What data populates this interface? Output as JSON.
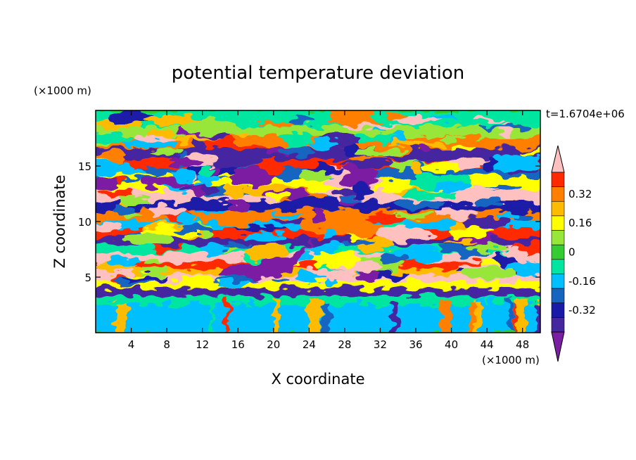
{
  "chart_data": {
    "type": "heatmap",
    "title": "potential temperature deviation",
    "xlabel": "X coordinate",
    "ylabel": "Z coordinate",
    "x_unit": "(×1000 m)",
    "y_unit": "(×1000 m)",
    "time_label": "t=1.6704e+06",
    "xlim": [
      0,
      50
    ],
    "ylim": [
      0,
      20
    ],
    "x_ticks": [
      "4",
      "8",
      "12",
      "16",
      "20",
      "24",
      "28",
      "32",
      "36",
      "40",
      "44",
      "48"
    ],
    "y_ticks": [
      "5",
      "10",
      "15"
    ],
    "colorbar": {
      "levels": [
        -0.4,
        -0.32,
        -0.24,
        -0.16,
        -0.08,
        0,
        0.08,
        0.16,
        0.24,
        0.32,
        0.4
      ],
      "tick_labels": [
        "0.32",
        "0.16",
        "0",
        "-0.16",
        "-0.32"
      ],
      "colors": [
        "#7b1fa2",
        "#4527a0",
        "#1a1aa8",
        "#1565c0",
        "#00bfff",
        "#00e5a0",
        "#33cc33",
        "#99e63b",
        "#ffff00",
        "#ffbb00",
        "#ff8000",
        "#ff2a00",
        "#ffc0c0"
      ]
    }
  }
}
